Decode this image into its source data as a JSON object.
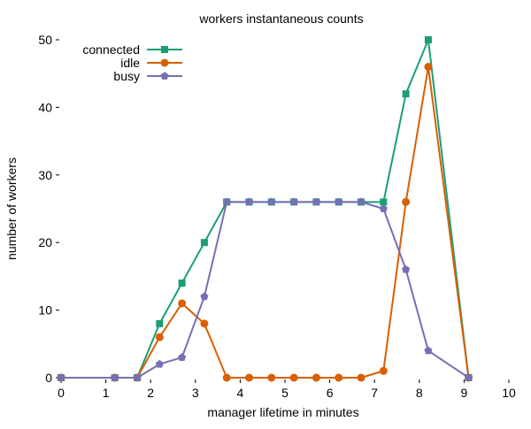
{
  "chart_data": {
    "type": "line",
    "title": "workers instantaneous counts",
    "xlabel": "manager lifetime in minutes",
    "ylabel": "number of workers",
    "xlim": [
      0,
      10
    ],
    "ylim": [
      0,
      50
    ],
    "xticks": [
      0,
      1,
      2,
      3,
      4,
      5,
      6,
      7,
      8,
      9,
      10
    ],
    "yticks": [
      0,
      10,
      20,
      30,
      40,
      50
    ],
    "grid": false,
    "legend_position": "top-left",
    "series": [
      {
        "name": "connected",
        "color": "#1b9e77",
        "marker": "square",
        "x": [
          0,
          1.2,
          1.7,
          2.2,
          2.7,
          3.2,
          3.7,
          4.2,
          4.7,
          5.2,
          5.7,
          6.2,
          6.7,
          7.2,
          7.7,
          8.2,
          9.1
        ],
        "y": [
          0,
          0,
          0,
          8,
          14,
          20,
          26,
          26,
          26,
          26,
          26,
          26,
          26,
          26,
          42,
          50,
          0
        ]
      },
      {
        "name": "idle",
        "color": "#d95f02",
        "marker": "circle",
        "x": [
          0,
          1.2,
          1.7,
          2.2,
          2.7,
          3.2,
          3.7,
          4.2,
          4.7,
          5.2,
          5.7,
          6.2,
          6.7,
          7.2,
          7.7,
          8.2,
          9.1
        ],
        "y": [
          0,
          0,
          0,
          6,
          11,
          8,
          0,
          0,
          0,
          0,
          0,
          0,
          0,
          1,
          26,
          46,
          0
        ]
      },
      {
        "name": "busy",
        "color": "#7570b3",
        "marker": "pentagon",
        "x": [
          0,
          1.2,
          1.7,
          2.2,
          2.7,
          3.2,
          3.7,
          4.2,
          4.7,
          5.2,
          5.7,
          6.2,
          6.7,
          7.2,
          7.7,
          8.2,
          9.1
        ],
        "y": [
          0,
          0,
          0,
          2,
          3,
          12,
          26,
          26,
          26,
          26,
          26,
          26,
          26,
          25,
          16,
          4,
          0
        ]
      }
    ]
  }
}
